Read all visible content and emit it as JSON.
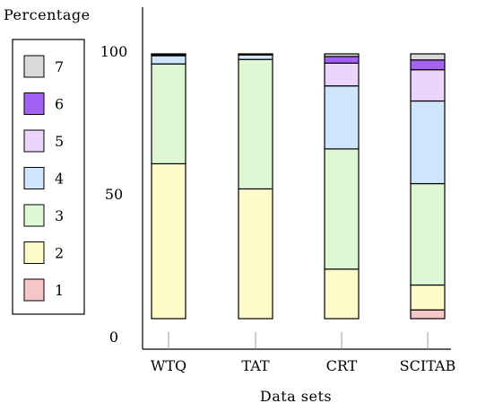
{
  "chart_data": {
    "type": "bar",
    "stacked": true,
    "xlabel": "Data sets",
    "ylabel": "Percentage",
    "ylim": [
      0,
      105
    ],
    "yticks": [
      0,
      50,
      100
    ],
    "categories": [
      "WTQ",
      "TAT",
      "CRT",
      "SCITAB"
    ],
    "series": [
      {
        "name": "1",
        "color": "#f7c6c6",
        "values": [
          0.0,
          0.0,
          0.0,
          3.3
        ]
      },
      {
        "name": "2",
        "color": "#fefbc8",
        "values": [
          58.5,
          49.0,
          18.7,
          9.4
        ]
      },
      {
        "name": "3",
        "color": "#dff8d4",
        "values": [
          37.7,
          48.9,
          45.4,
          38.3
        ]
      },
      {
        "name": "4",
        "color": "#cfe5fb",
        "values": [
          3.1,
          1.7,
          23.8,
          31.2
        ]
      },
      {
        "name": "5",
        "color": "#ecd4fb",
        "values": [
          0.4,
          0.2,
          8.6,
          11.8
        ]
      },
      {
        "name": "6",
        "color": "#a561f4",
        "values": [
          0.2,
          0.1,
          2.5,
          3.7
        ]
      },
      {
        "name": "7",
        "color": "#d9d9d9",
        "values": [
          0.1,
          0.1,
          1.0,
          2.3
        ]
      }
    ],
    "legend_position": "left",
    "grid": false
  }
}
